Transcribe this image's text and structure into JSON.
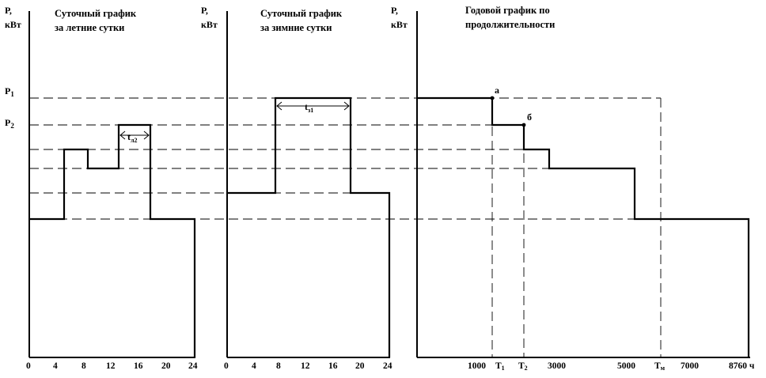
{
  "axis_unit": "Р,",
  "axis_unit2": "кВт",
  "left_labels": {
    "p1": "P",
    "p1_sub": "1",
    "p2": "P",
    "p2_sub": "2"
  },
  "panels": [
    {
      "title_line1": "Суточный график",
      "title_line2": "за летние сутки",
      "x_ticks": [
        "0",
        "4",
        "8",
        "12",
        "16",
        "20",
        "24"
      ],
      "interval_label": "t",
      "interval_sub": "л2"
    },
    {
      "title_line1": "Суточный график",
      "title_line2": "за зимние сутки",
      "x_ticks": [
        "0",
        "4",
        "8",
        "12",
        "16",
        "20",
        "24"
      ],
      "interval_label": "t",
      "interval_sub": "з1"
    },
    {
      "title_line1": "Годовой график по",
      "title_line2": "продолжительности",
      "x_ticks": [
        "1000",
        "3000",
        "5000",
        "7000",
        "8760 ч"
      ],
      "t1": "T",
      "t1_sub": "1",
      "t2": "T",
      "t2_sub": "2",
      "tm": "T",
      "tm_sub": "м",
      "point_a": "а",
      "point_b": "б"
    }
  ]
}
